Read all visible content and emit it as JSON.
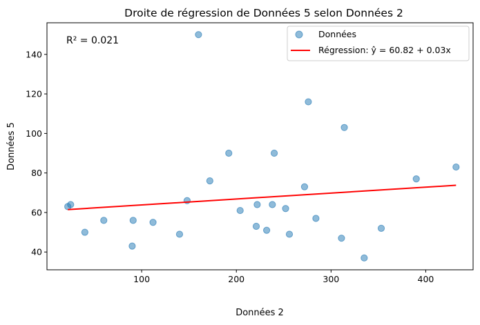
{
  "chart_data": {
    "type": "scatter",
    "title": "Droite de régression de Données 5 selon Données 2",
    "xlabel": "Données 2",
    "ylabel": "Données 5",
    "xlim": [
      0,
      450
    ],
    "ylim": [
      31,
      156
    ],
    "xticks": [
      100,
      200,
      300,
      400
    ],
    "yticks": [
      40,
      60,
      80,
      100,
      120,
      140
    ],
    "grid": false,
    "legend_position": "top-right",
    "annotation": "R² = 0.021",
    "colors": {
      "points": "#1f77b4",
      "line": "#ff0000"
    },
    "series": [
      {
        "name": "Données",
        "kind": "scatter",
        "points": [
          [
            22,
            63
          ],
          [
            25,
            64
          ],
          [
            40,
            50
          ],
          [
            60,
            56
          ],
          [
            90,
            43
          ],
          [
            91,
            56
          ],
          [
            112,
            55
          ],
          [
            140,
            49
          ],
          [
            148,
            66
          ],
          [
            160,
            150
          ],
          [
            172,
            76
          ],
          [
            192,
            90
          ],
          [
            204,
            61
          ],
          [
            221,
            53
          ],
          [
            222,
            64
          ],
          [
            232,
            51
          ],
          [
            238,
            64
          ],
          [
            240,
            90
          ],
          [
            252,
            62
          ],
          [
            256,
            49
          ],
          [
            272,
            73
          ],
          [
            276,
            116
          ],
          [
            284,
            57
          ],
          [
            311,
            47
          ],
          [
            314,
            103
          ],
          [
            335,
            37
          ],
          [
            353,
            52
          ],
          [
            390,
            77
          ],
          [
            432,
            83
          ]
        ]
      },
      {
        "name": "Régression: ŷ = 60.82 + 0.03x",
        "kind": "line",
        "intercept": 60.82,
        "slope": 0.03,
        "x_range": [
          22,
          432
        ]
      }
    ]
  }
}
